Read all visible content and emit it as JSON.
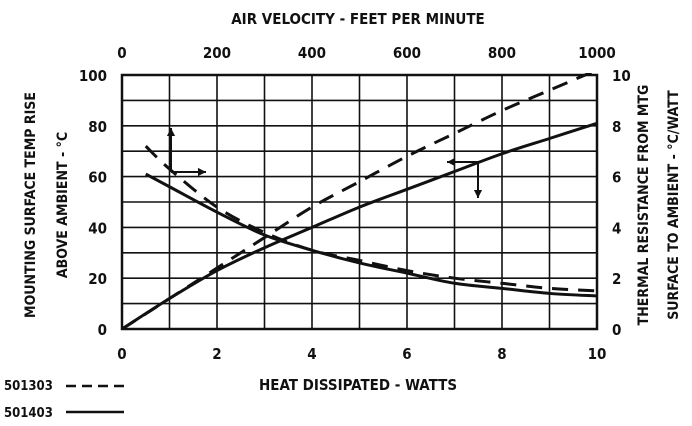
{
  "chart_data": {
    "type": "line",
    "title": "",
    "x_bottom": {
      "label": "HEAT DISSIPATED - WATTS",
      "range": [
        0,
        10
      ],
      "ticks": [
        "0",
        "2",
        "4",
        "6",
        "8",
        "10"
      ]
    },
    "x_top": {
      "label": "AIR VELOCITY - FEET PER MINUTE",
      "range": [
        0,
        1000
      ],
      "ticks": [
        "0",
        "200",
        "400",
        "600",
        "800",
        "1000"
      ]
    },
    "y_left": {
      "label_line1": "MOUNTING SURFACE TEMP RISE",
      "label_line2": "ABOVE AMBIENT - °C",
      "range": [
        0,
        100
      ],
      "ticks": [
        "0",
        "20",
        "40",
        "60",
        "80",
        "100"
      ]
    },
    "y_right": {
      "label_line1": "THERMAL RESISTANCE FROM MTG",
      "label_line2": "SURFACE TO AMBIENT - °C/WATT",
      "range": [
        0,
        10
      ],
      "ticks": [
        "0",
        "2",
        "4",
        "6",
        "8",
        "10"
      ]
    },
    "grid": true,
    "legend": {
      "placement": "bottom-left",
      "entries": [
        {
          "name": "501303",
          "style": "dashed"
        },
        {
          "name": "501403",
          "style": "solid"
        }
      ]
    },
    "series": [
      {
        "name": "501303",
        "style": "dashed",
        "curve": "temp rise vs heat dissipated",
        "axes": "bottom-left",
        "x": [
          0,
          1,
          2,
          3,
          4,
          5,
          6,
          7,
          8,
          9,
          10
        ],
        "y": [
          0,
          12,
          24,
          36,
          48,
          58,
          68,
          77,
          86,
          94,
          102
        ]
      },
      {
        "name": "501403",
        "style": "solid",
        "curve": "temp rise vs heat dissipated",
        "axes": "bottom-left",
        "x": [
          0,
          1,
          2,
          3,
          4,
          5,
          6,
          7,
          8,
          9,
          10
        ],
        "y": [
          0,
          12,
          23,
          32,
          40,
          48,
          55,
          62,
          69,
          75,
          81
        ]
      },
      {
        "name": "501303",
        "style": "dashed",
        "curve": "thermal resistance vs air velocity",
        "axes": "top-right",
        "x": [
          50,
          100,
          200,
          300,
          400,
          500,
          600,
          700,
          800,
          900,
          1000
        ],
        "y": [
          7.2,
          6.3,
          4.8,
          3.8,
          3.1,
          2.7,
          2.3,
          2.0,
          1.8,
          1.6,
          1.5
        ]
      },
      {
        "name": "501403",
        "style": "solid",
        "curve": "thermal resistance vs air velocity",
        "axes": "top-right",
        "x": [
          50,
          100,
          200,
          300,
          400,
          500,
          600,
          700,
          800,
          900,
          1000
        ],
        "y": [
          6.1,
          5.6,
          4.6,
          3.7,
          3.1,
          2.6,
          2.2,
          1.8,
          1.6,
          1.4,
          1.3
        ]
      }
    ],
    "annotations": [
      {
        "type": "arrow-pair",
        "meaning": "curves starting at upper-left refer to top and right axes",
        "near_x": 1.0,
        "near_y": 65
      },
      {
        "type": "arrow-pair",
        "meaning": "rising curves refer to bottom and left axes",
        "near_x": 7.0,
        "near_y": 66
      }
    ]
  }
}
